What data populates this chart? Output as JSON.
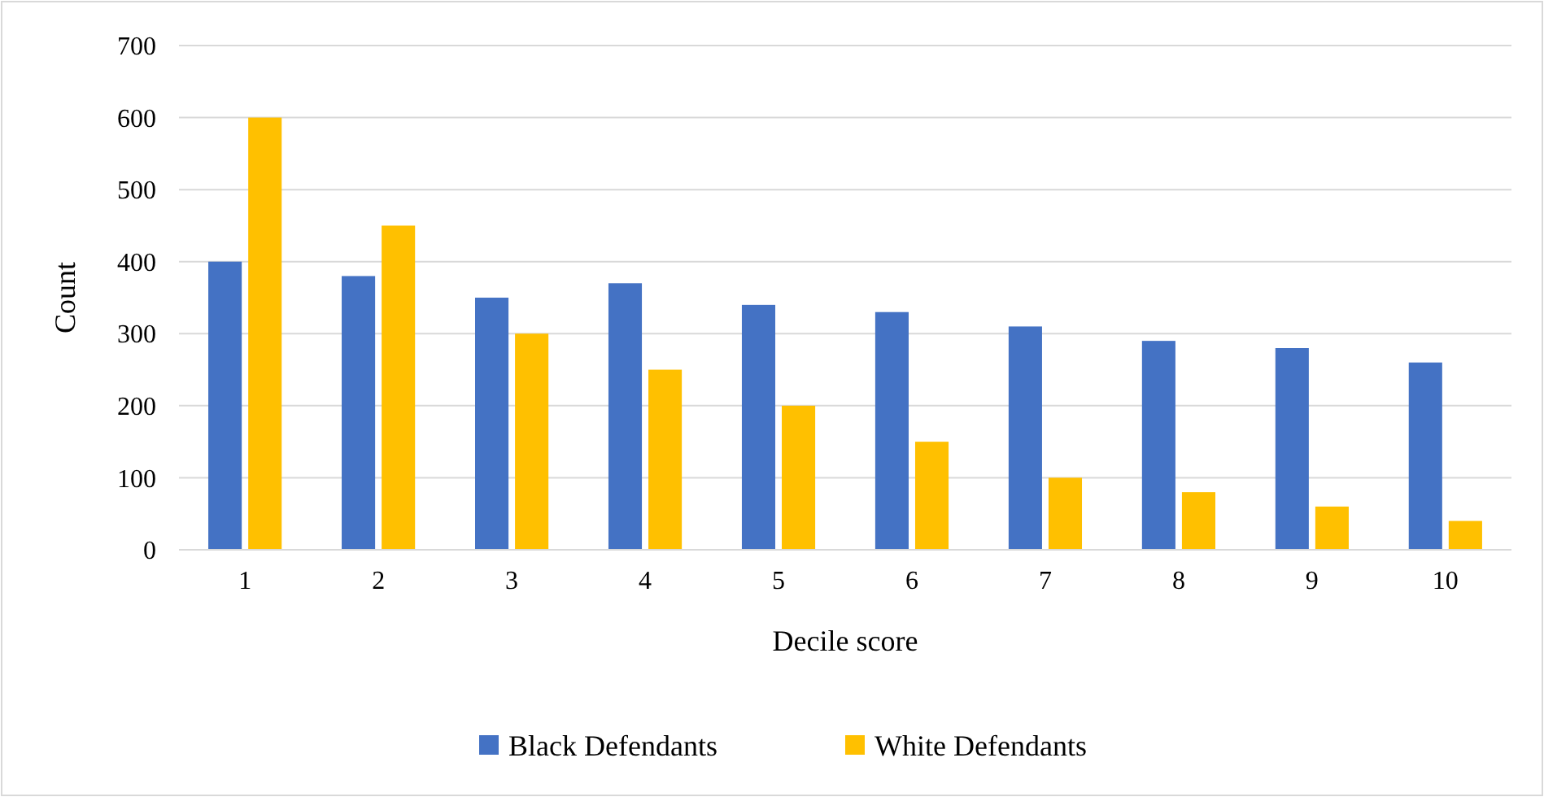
{
  "chart_data": {
    "type": "bar",
    "xlabel": "Decile score",
    "ylabel": "Count",
    "categories": [
      "1",
      "2",
      "3",
      "4",
      "5",
      "6",
      "7",
      "8",
      "9",
      "10"
    ],
    "series": [
      {
        "name": "Black Defendants",
        "color": "#4472c4",
        "values": [
          400,
          380,
          350,
          370,
          340,
          330,
          310,
          290,
          280,
          260
        ]
      },
      {
        "name": "White Defendants",
        "color": "#ffc000",
        "values": [
          600,
          450,
          300,
          250,
          200,
          150,
          100,
          80,
          60,
          40
        ]
      }
    ],
    "ylim": [
      0,
      700
    ],
    "yticks": [
      0,
      100,
      200,
      300,
      400,
      500,
      600,
      700
    ],
    "grid": "y",
    "legend": "bottom"
  }
}
